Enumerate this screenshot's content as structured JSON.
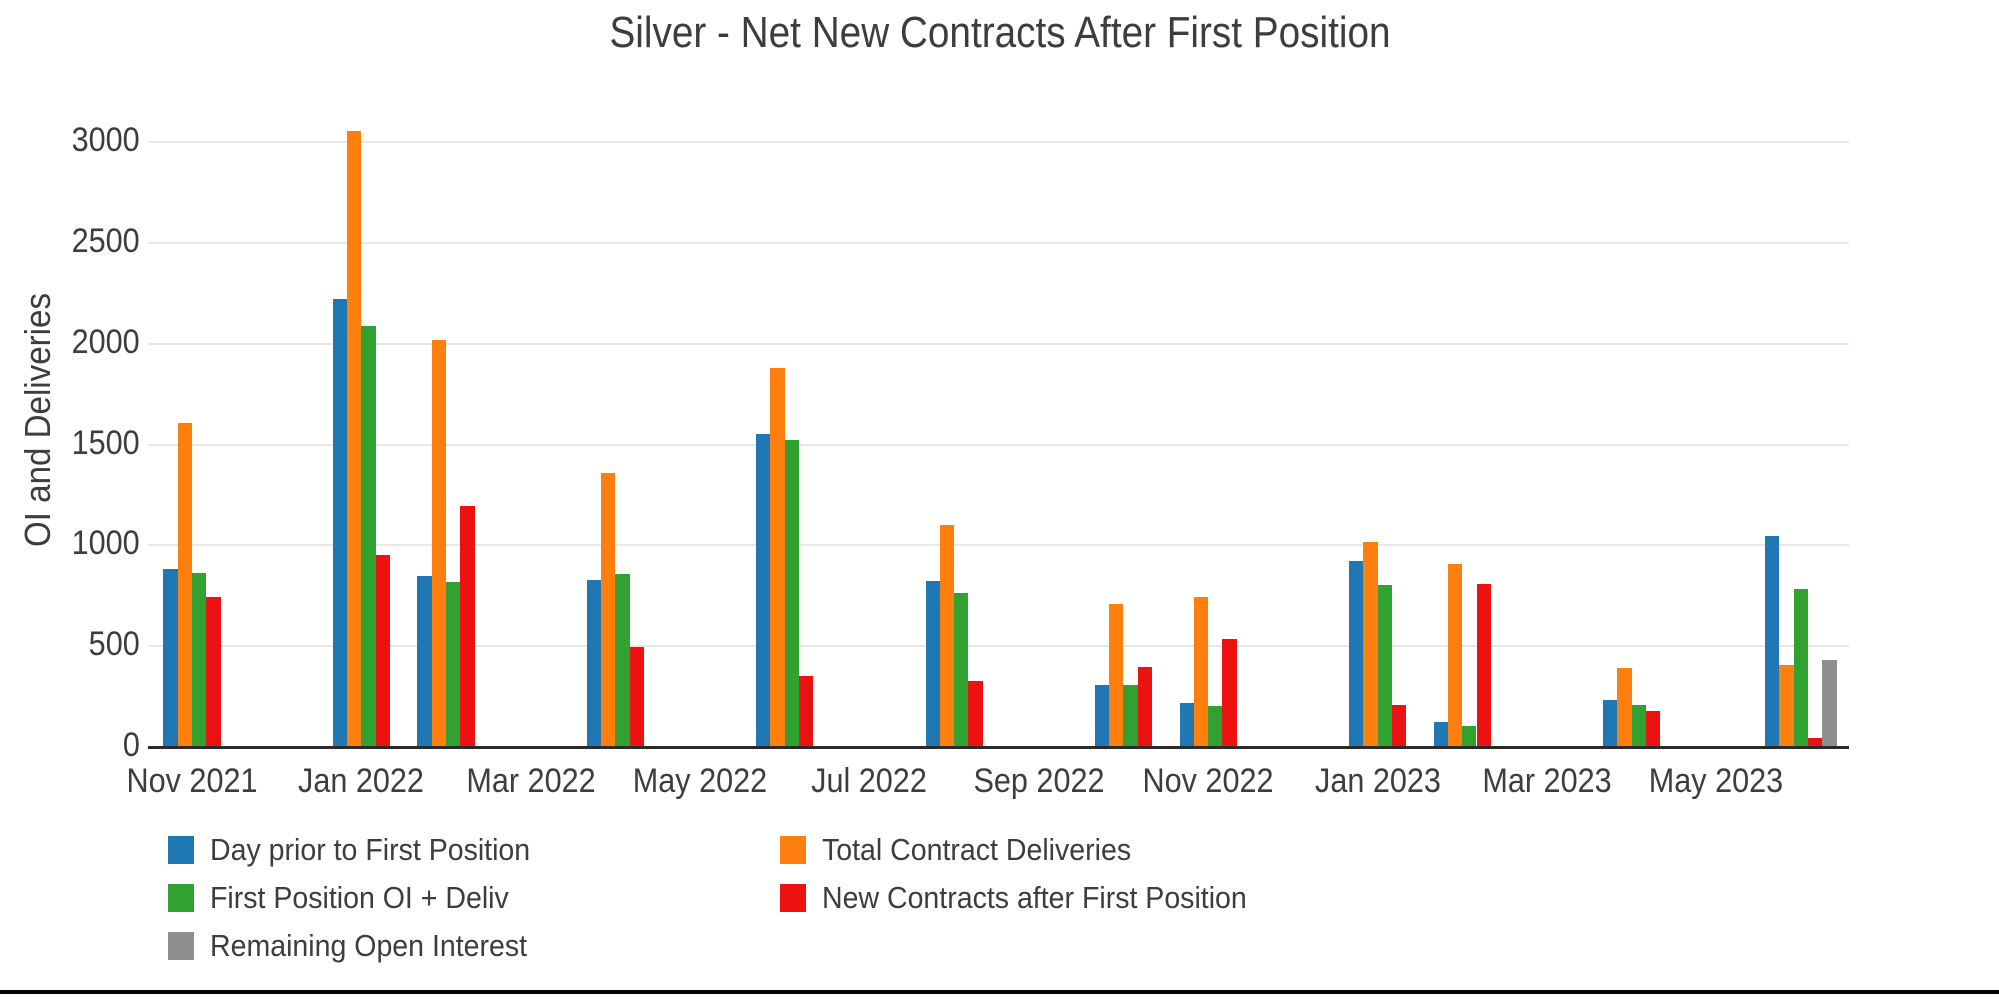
{
  "chart_data": {
    "type": "bar",
    "title": "Silver - Net New Contracts After First Position",
    "ylabel": "OI and Deliveries",
    "xlabel": "",
    "grid": "horizontal",
    "legend_position": "bottom",
    "ylim": [
      0,
      3100
    ],
    "y_ticks": [
      0,
      500,
      1000,
      1500,
      2000,
      2500,
      3000
    ],
    "x_ticks": [
      {
        "label": "Nov 2021",
        "month": 0
      },
      {
        "label": "Jan 2022",
        "month": 2
      },
      {
        "label": "Mar 2022",
        "month": 4
      },
      {
        "label": "May 2022",
        "month": 6
      },
      {
        "label": "Jul 2022",
        "month": 8
      },
      {
        "label": "Sep 2022",
        "month": 10
      },
      {
        "label": "Nov 2022",
        "month": 12
      },
      {
        "label": "Jan 2023",
        "month": 14
      },
      {
        "label": "Mar 2023",
        "month": 16
      },
      {
        "label": "May 2023",
        "month": 18
      }
    ],
    "categories": [
      "Nov 2021",
      "Jan 2022",
      "Feb 2022",
      "Apr 2022",
      "Jun 2022",
      "Aug 2022",
      "Oct 2022",
      "Nov 2022",
      "Jan 2023",
      "Feb 2023",
      "Apr 2023",
      "Jun 2023"
    ],
    "category_month_offsets": [
      0,
      2,
      3,
      5,
      7,
      9,
      11,
      12,
      14,
      15,
      17,
      19
    ],
    "series": [
      {
        "name": "Day prior to First Position",
        "color": "#1f77b4",
        "values": [
          885,
          2220,
          850,
          830,
          1555,
          825,
          310,
          220,
          925,
          125,
          235,
          1045
        ]
      },
      {
        "name": "Total Contract Deliveries",
        "color": "#ff7f0e",
        "values": [
          1605,
          3055,
          2020,
          1360,
          1880,
          1100,
          710,
          745,
          1015,
          910,
          390,
          405
        ]
      },
      {
        "name": "First Position OI + Deliv",
        "color": "#31a131",
        "values": [
          865,
          2090,
          820,
          860,
          1525,
          765,
          310,
          205,
          805,
          105,
          210,
          785
        ]
      },
      {
        "name": "New Contracts after First Position",
        "color": "#ec1212",
        "values": [
          745,
          950,
          1195,
          495,
          350,
          325,
          395,
          535,
          210,
          810,
          180,
          45
        ]
      },
      {
        "name": "Remaining Open Interest",
        "color": "#8f8f8f",
        "values": [
          null,
          null,
          null,
          null,
          null,
          null,
          null,
          null,
          null,
          null,
          null,
          430
        ]
      }
    ],
    "legend_column_order": [
      0,
      2,
      4,
      1,
      3
    ]
  }
}
